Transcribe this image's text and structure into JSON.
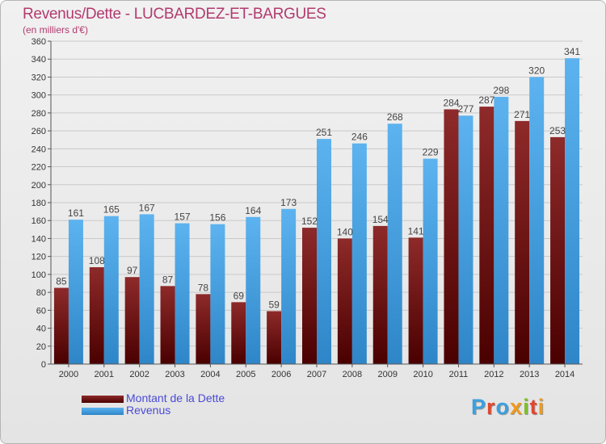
{
  "chart_data": {
    "type": "bar",
    "title": "Revenus/Dette - LUCBARDEZ-ET-BARGUES",
    "subtitle": "(en milliers d'€)",
    "categories": [
      "2000",
      "2001",
      "2002",
      "2003",
      "2004",
      "2005",
      "2006",
      "2007",
      "2008",
      "2009",
      "2010",
      "2011",
      "2012",
      "2013",
      "2014"
    ],
    "series": [
      {
        "name": "Montant de la Dette",
        "values": [
          85,
          108,
          97,
          87,
          78,
          69,
          59,
          152,
          140,
          154,
          141,
          284,
          287,
          271,
          253
        ],
        "color": "#7a1414"
      },
      {
        "name": "Revenus",
        "values": [
          161,
          165,
          167,
          157,
          156,
          164,
          173,
          251,
          246,
          268,
          229,
          277,
          298,
          320,
          341
        ],
        "color": "#4aa6e6"
      }
    ],
    "ylim": [
      0,
      360
    ],
    "ytick_step": 20,
    "grid": true,
    "legend_position": "bottom-left"
  },
  "logo": {
    "text": "Proxiti"
  }
}
